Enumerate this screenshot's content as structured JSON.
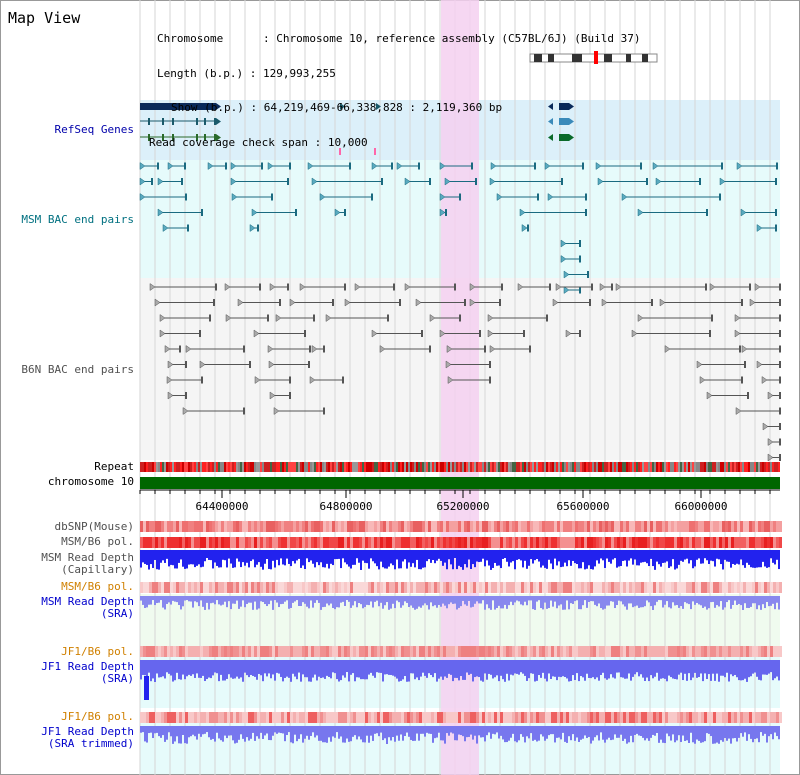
{
  "title": "Map View",
  "info": {
    "chromosome_label": "Chromosome",
    "chromosome_value": "Chromosome 10, reference assembly (C57BL/6J) (Build 37)",
    "length_label": "Length (b.p.)",
    "length_value": "129,993,255",
    "show_label": "Show (b.p.)",
    "show_value": "64,219,469-66,338,828 : 2,119,360 bp",
    "coverage_label": "Read coverage check span",
    "coverage_value": "10,000"
  },
  "tracks": {
    "refseq": "RefSeq Genes",
    "msm_bac": "MSM BAC end pairs",
    "b6n_bac": "B6N BAC end pairs",
    "repeat": "Repeat",
    "chromosome": "chromosome 10",
    "dbsnp": "dbSNP(Mouse)",
    "msm_b6_pol_1": "MSM/B6 pol.",
    "msm_depth_cap_1": "MSM Read Depth",
    "msm_depth_cap_2": "(Capillary)",
    "msm_b6_pol_2": "MSM/B6 pol.",
    "msm_depth_sra_1": "MSM Read Depth",
    "msm_depth_sra_2": "(SRA)",
    "jf1_b6_pol_1": "JF1/B6 pol.",
    "jf1_depth_sra_1": "JF1 Read Depth",
    "jf1_depth_sra_2": "(SRA)",
    "jf1_b6_pol_2": "JF1/B6 pol.",
    "jf1_depth_trim_1": "JF1 Read Depth",
    "jf1_depth_trim_2": "(SRA trimmed)"
  },
  "axis_ticks": [
    "64400000",
    "64800000",
    "65200000",
    "65600000",
    "66000000"
  ],
  "colors": {
    "refseq_label": "#0000aa",
    "msm_label": "#007080",
    "b6n_label": "#505050",
    "pol_orange": "#d08000",
    "depth_blue": "#0000cc",
    "chromosome_bar": "#006600",
    "highlight": "#f5d0f0"
  }
}
